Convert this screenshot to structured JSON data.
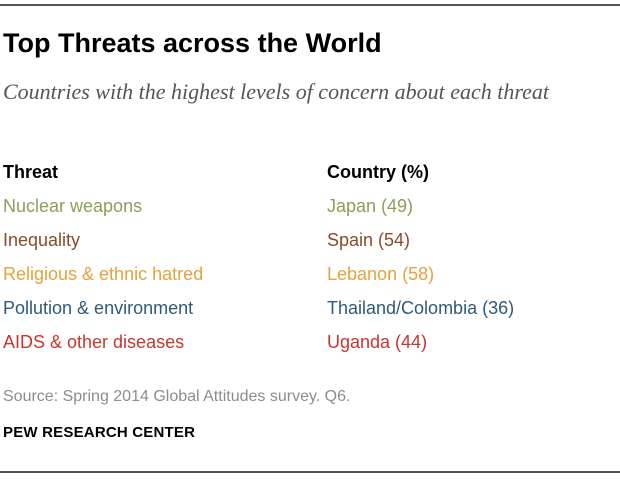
{
  "title": "Top Threats across the World",
  "subtitle": "Countries with the highest levels of concern about each threat",
  "table": {
    "header": {
      "threat": "Threat",
      "country": "Country (%)"
    },
    "rows": [
      {
        "threat": "Nuclear weapons",
        "country": "Japan (49)",
        "color": "#8aa05a"
      },
      {
        "threat": "Inequality",
        "country": "Spain (54)",
        "color": "#8b4a2b"
      },
      {
        "threat": "Religious & ethnic hatred",
        "country": "Lebanon (58)",
        "color": "#e6a23c"
      },
      {
        "threat": "Pollution & environment",
        "country": "Thailand/Colombia (36)",
        "color": "#2f5a7a"
      },
      {
        "threat": "AIDS & other diseases",
        "country": "Uganda (44)",
        "color": "#c8352f"
      }
    ]
  },
  "source": "Source: Spring 2014 Global Attitudes survey. Q6.",
  "organization": "PEW RESEARCH CENTER"
}
